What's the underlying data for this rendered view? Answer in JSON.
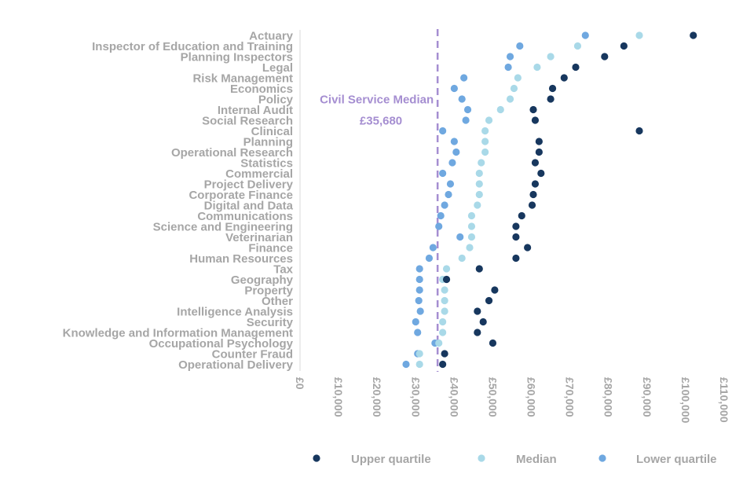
{
  "chart_data": {
    "type": "scatter",
    "orientation": "horizontal-dot-plot",
    "categories": [
      "Actuary",
      "Inspector of Education and Training",
      "Planning Inspectors",
      "Legal",
      "Risk Management",
      "Economics",
      "Policy",
      "Internal Audit",
      "Social Research",
      "Clinical",
      "Planning",
      "Operational Research",
      "Statistics",
      "Commercial",
      "Project Delivery",
      "Corporate Finance",
      "Digital and Data",
      "Communications",
      "Science and Engineering",
      "Veterinarian",
      "Finance",
      "Human Resources",
      "Tax",
      "Geography",
      "Property",
      "Other",
      "Intelligence Analysis",
      "Security",
      "Knowledge and Information Management",
      "Occupational Psychology",
      "Counter Fraud",
      "Operational Delivery"
    ],
    "series": [
      {
        "name": "Upper quartile",
        "color": "#17375e",
        "values": [
          102000,
          84000,
          79000,
          71500,
          68500,
          65500,
          65000,
          60500,
          61000,
          88000,
          62000,
          62000,
          61000,
          62500,
          61000,
          60500,
          60200,
          57500,
          56000,
          56000,
          59000,
          56000,
          46500,
          38000,
          50500,
          49000,
          46000,
          47500,
          46000,
          50000,
          37500,
          37000
        ]
      },
      {
        "name": "Median",
        "color": "#a9d9e8",
        "values": [
          88000,
          72000,
          65000,
          61500,
          56500,
          55500,
          54500,
          52000,
          49000,
          48000,
          48000,
          48000,
          47000,
          46500,
          46500,
          46500,
          46000,
          44500,
          44500,
          44500,
          44000,
          42000,
          38000,
          37000,
          37500,
          37500,
          37500,
          37000,
          37000,
          36000,
          31000,
          31000
        ]
      },
      {
        "name": "Lower quartile",
        "color": "#6fa8e0",
        "values": [
          74000,
          57000,
          54500,
          54000,
          42500,
          40000,
          42000,
          43500,
          43000,
          37000,
          40000,
          40500,
          39500,
          37000,
          39000,
          38500,
          37500,
          36500,
          36000,
          41500,
          34500,
          33500,
          31000,
          31000,
          31000,
          30800,
          31200,
          30000,
          30500,
          35000,
          30500,
          27500
        ]
      }
    ],
    "xlim": [
      0,
      110000
    ],
    "x_ticks": [
      0,
      10000,
      20000,
      30000,
      40000,
      50000,
      60000,
      70000,
      80000,
      90000,
      100000,
      110000
    ],
    "x_tick_labels": [
      "£0",
      "£10,000",
      "£20,000",
      "£30,000",
      "£40,000",
      "£50,000",
      "£60,000",
      "£70,000",
      "£80,000",
      "£90,000",
      "£100,000",
      "£110,000"
    ],
    "reference_line": {
      "value": 35680,
      "label": "Civil Service Median",
      "value_label": "£35,680",
      "color": "#a58ed1",
      "style": "dashed"
    },
    "legend_position": "bottom",
    "grid": false
  }
}
